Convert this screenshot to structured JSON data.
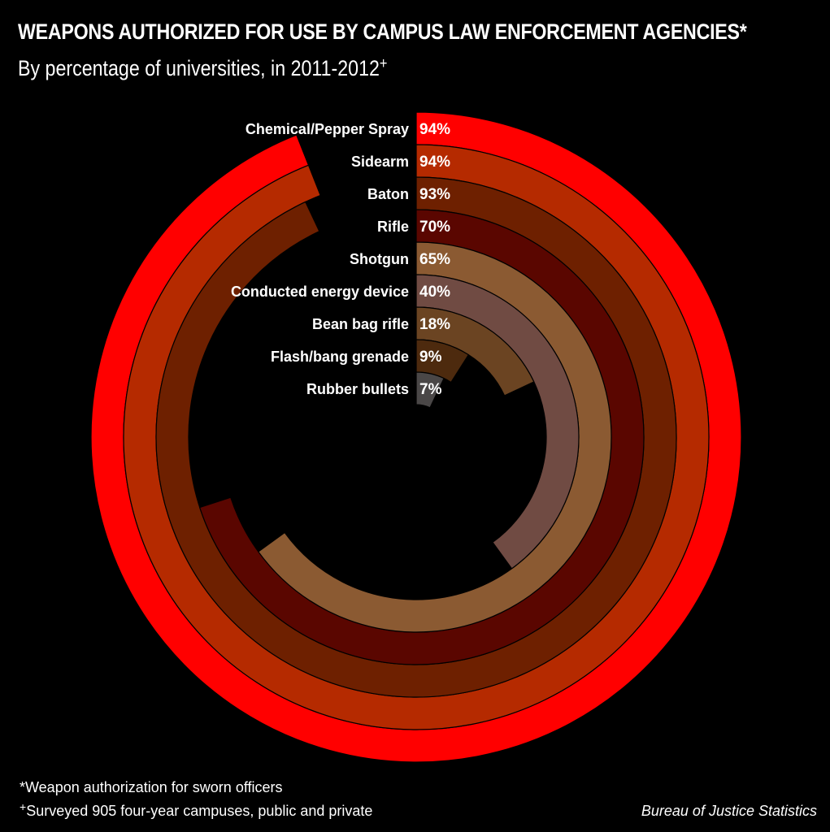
{
  "chart_data": {
    "type": "radial-bar",
    "title": "WEAPONS AUTHORIZED FOR USE BY CAMPUS LAW ENFORCEMENT AGENCIES*",
    "subtitle": "By percentage of universities, in 2011-2012",
    "subtitle_marker": "+",
    "categories": [
      "Chemical/Pepper Spray",
      "Sidearm",
      "Baton",
      "Rifle",
      "Shotgun",
      "Conducted energy device",
      "Bean bag rifle",
      "Flash/bang grenade",
      "Rubber bullets"
    ],
    "values": [
      94,
      94,
      93,
      70,
      65,
      40,
      18,
      9,
      7
    ],
    "value_labels": [
      "94%",
      "94%",
      "93%",
      "70%",
      "65%",
      "40%",
      "18%",
      "9%",
      "7%"
    ],
    "colors": [
      "#ff0000",
      "#b52a00",
      "#6e2000",
      "#5a0600",
      "#8b5a32",
      "#704b43",
      "#6b4422",
      "#4d2a0e",
      "#4a4747"
    ],
    "unit": "%",
    "max": 100
  },
  "footnotes": {
    "weapon_note": "*Weapon authorization for sworn officers",
    "survey_marker": "+",
    "survey_note": "Surveyed 905 four-year campuses, public and private"
  },
  "source": "Bureau of Justice Statistics"
}
